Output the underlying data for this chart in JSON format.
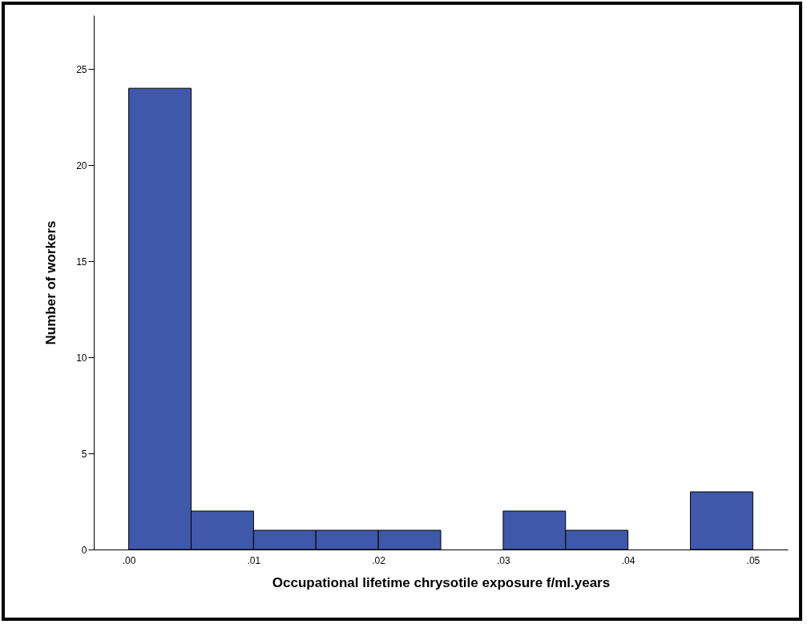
{
  "chart_data": {
    "type": "histogram",
    "xlabel": "Occupational lifetime chrysotile exposure f/ml.years",
    "ylabel": "Number of workers",
    "bins": [
      0,
      0.005,
      0.01,
      0.015,
      0.02,
      0.025,
      0.03,
      0.035,
      0.04,
      0.045,
      0.05
    ],
    "values": [
      24,
      2,
      1,
      1,
      1,
      0,
      2,
      1,
      0,
      3
    ],
    "color": "#3f58a9",
    "xlim": [
      -0.0028,
      0.0528
    ],
    "ylim": [
      0,
      27.8
    ],
    "xticks": [
      {
        "value": 0,
        "label": ".00"
      },
      {
        "value": 0.01,
        "label": ".01"
      },
      {
        "value": 0.02,
        "label": ".02"
      },
      {
        "value": 0.03,
        "label": ".03"
      },
      {
        "value": 0.04,
        "label": ".04"
      },
      {
        "value": 0.05,
        "label": ".05"
      }
    ],
    "yticks": [
      0,
      5,
      10,
      15,
      20,
      25
    ],
    "grid": false
  }
}
